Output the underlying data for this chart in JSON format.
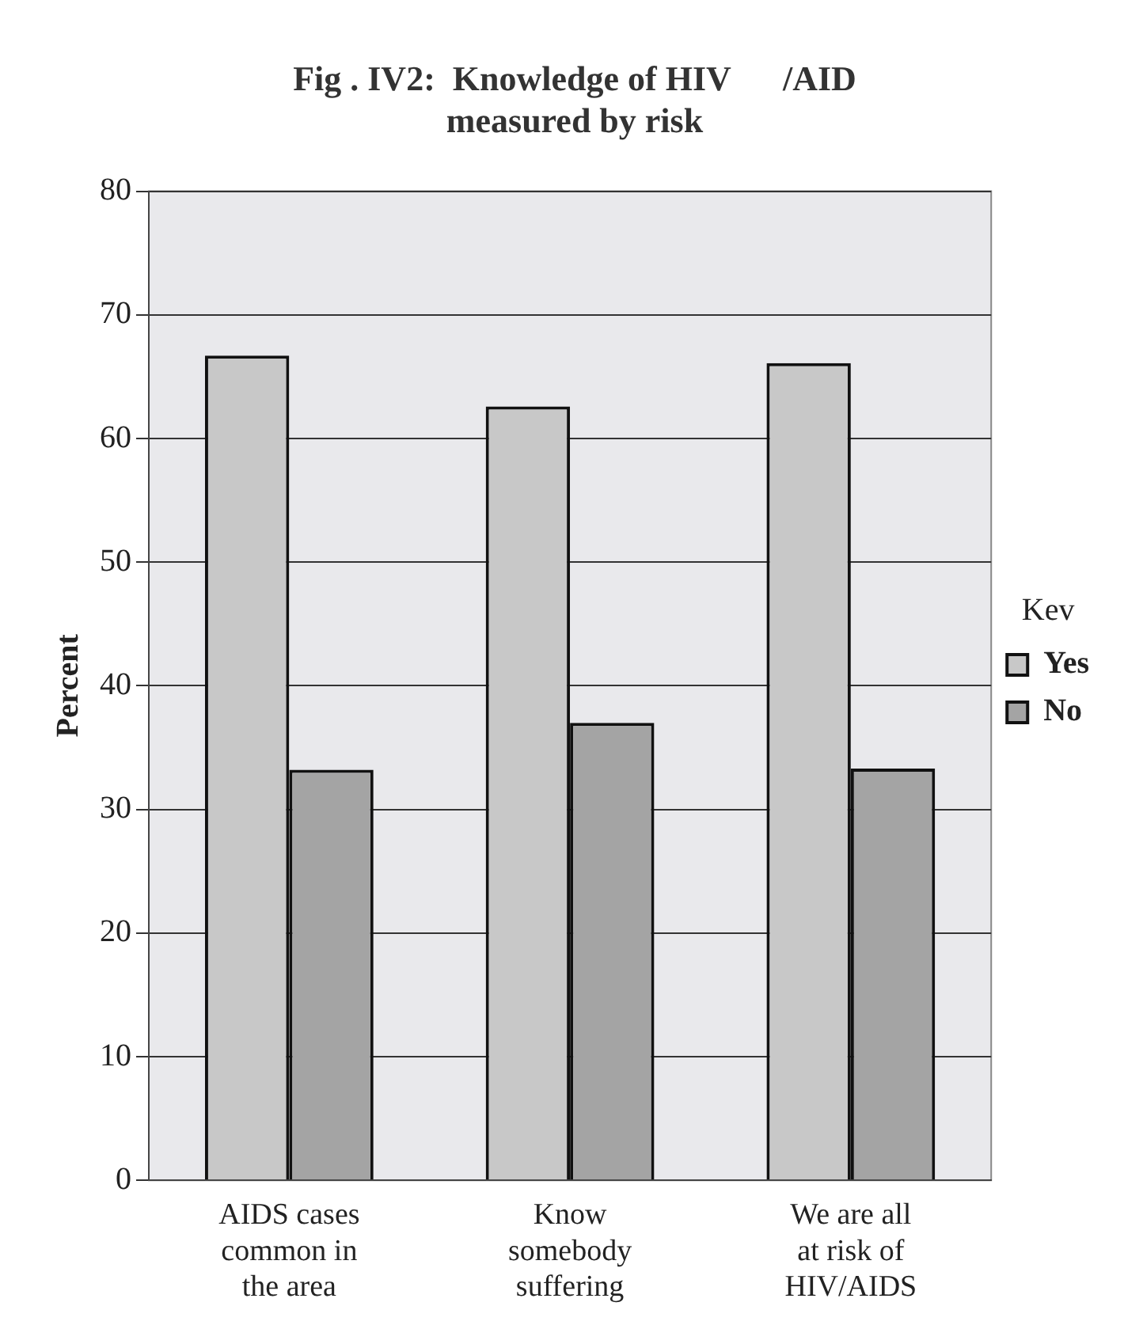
{
  "chart_data": {
    "type": "bar",
    "title": "Fig . IV2:  Knowledge of HIV      /AID\nmeasured by risk",
    "ylabel": "Percent",
    "legend_title": "Kev",
    "categories": [
      "AIDS cases common in the area",
      "Know somebody suffering",
      "We are all at risk of HIV/AIDS"
    ],
    "series": [
      {
        "name": "Yes",
        "color": "#c8c8c8",
        "values": [
          66.7,
          62.6,
          66.1
        ]
      },
      {
        "name": "No",
        "color": "#a4a4a4",
        "values": [
          33.2,
          37.0,
          33.3
        ]
      }
    ],
    "ylim": [
      0,
      80
    ],
    "yticks": [
      0,
      10,
      20,
      30,
      40,
      50,
      60,
      70,
      80
    ],
    "grid": "y",
    "legend": "right"
  }
}
